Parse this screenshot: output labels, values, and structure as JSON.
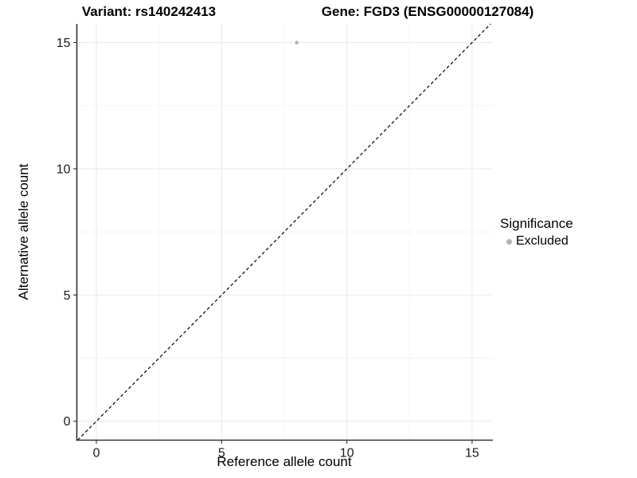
{
  "chart_data": {
    "type": "scatter",
    "title_left": "Variant: rs140242413",
    "title_right": "Gene: FGD3 (ENSG00000127084)",
    "xlabel": "Reference allele count",
    "ylabel": "Alternative allele count",
    "xlim": [
      -0.78,
      15.83
    ],
    "ylim": [
      -0.75,
      15.74
    ],
    "xticks": [
      0,
      5,
      10,
      15
    ],
    "yticks": [
      0,
      5,
      10,
      15
    ],
    "minor_xticks": [
      2.5,
      7.5,
      12.5
    ],
    "minor_yticks": [
      2.5,
      7.5,
      12.5
    ],
    "grid": true,
    "points": [
      {
        "x": 8,
        "y": 15,
        "series": "Excluded"
      }
    ],
    "identity_line": {
      "style": "dashed",
      "equation": "y = x",
      "color": "#000000"
    },
    "legend": {
      "position": "right",
      "title": "Significance",
      "items": [
        {
          "label": "Excluded",
          "color": "#b4b4b4",
          "marker": "circle"
        }
      ]
    },
    "colors": {
      "point": "#b4b4b4",
      "grid_major": "#e8e8e8",
      "grid_minor": "#f4f4f4",
      "axis_line": "#333333",
      "tick_text": "#1a1a1a",
      "background": "#ffffff"
    }
  }
}
